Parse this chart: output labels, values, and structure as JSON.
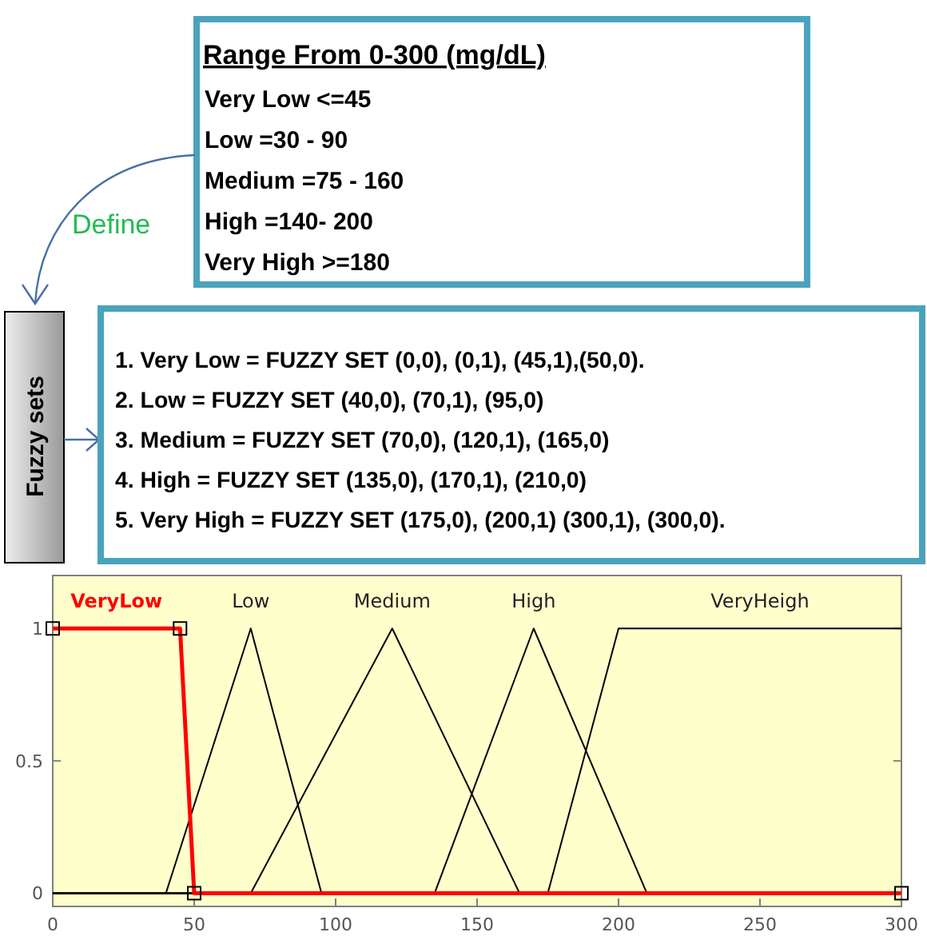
{
  "chart_data": [
    {
      "type": "other",
      "title": "Range From 0-300 (mg/dL)",
      "annotations": [
        "Very Low <=45",
        "Low =30 - 90",
        "Medium =75 - 160",
        "High =140-  200",
        "Very High >=180",
        "Define",
        "Fuzzy sets",
        "1. Very Low = FUZZY SET (0,0), (0,1), (45,1),(50,0).",
        "2. Low = FUZZY SET (40,0), (70,1), (95,0)",
        "3. Medium = FUZZY SET (70,0), (120,1), (165,0)",
        "4. High = FUZZY SET (135,0), (170,1), (210,0)",
        "5. Very High = FUZZY SET (175,0), (200,1) (300,1), (300,0)."
      ]
    },
    {
      "type": "line",
      "xlim": [
        0,
        300
      ],
      "xticks": [
        0,
        50,
        100,
        150,
        200,
        250,
        300
      ],
      "ylim": [
        -0.05,
        1.2
      ],
      "yticks": [
        0,
        0.5,
        1
      ],
      "grid": false,
      "series": [
        {
          "name": "Low",
          "color": "#000000",
          "x": [
            0,
            40,
            70,
            95,
            300
          ],
          "values": [
            0,
            0,
            1,
            0,
            0
          ]
        },
        {
          "name": "Medium",
          "color": "#000000",
          "x": [
            0,
            70,
            120,
            165,
            300
          ],
          "values": [
            0,
            0,
            1,
            0,
            0
          ]
        },
        {
          "name": "High",
          "color": "#000000",
          "x": [
            0,
            135,
            170,
            210,
            300
          ],
          "values": [
            0,
            0,
            1,
            0,
            0
          ]
        },
        {
          "name": "VeryHeigh",
          "color": "#000000",
          "x": [
            0,
            175,
            200,
            300
          ],
          "values": [
            0,
            0,
            1,
            1
          ]
        },
        {
          "name": "VeryLow",
          "color": "#ff0000",
          "x": [
            0,
            45,
            50,
            300
          ],
          "values": [
            1,
            1,
            0,
            0
          ],
          "marker": "square"
        }
      ]
    }
  ]
}
